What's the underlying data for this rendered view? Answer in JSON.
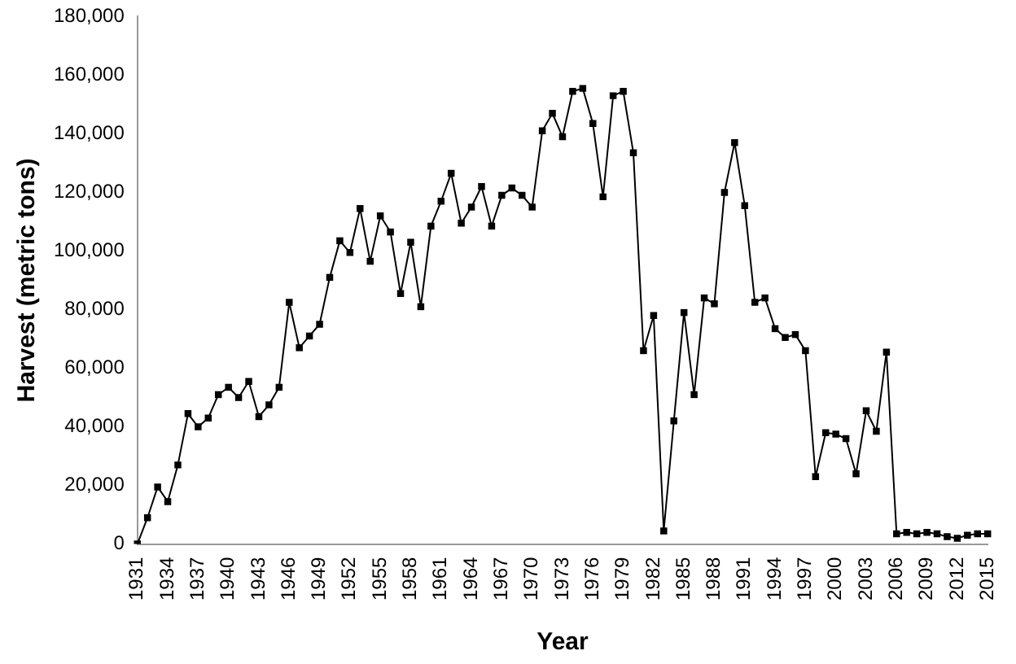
{
  "chart_data": {
    "type": "line",
    "xlabel": "Year",
    "ylabel": "Harvest (metric tons)",
    "categories": [
      "1931",
      null,
      null,
      "1934",
      null,
      null,
      "1937",
      null,
      null,
      "1940",
      null,
      null,
      "1943",
      null,
      null,
      "1946",
      null,
      null,
      "1949",
      null,
      null,
      "1952",
      null,
      null,
      "1955",
      null,
      null,
      "1958",
      null,
      null,
      "1961",
      null,
      null,
      "1964",
      null,
      null,
      "1967",
      null,
      null,
      "1970",
      null,
      null,
      "1973",
      null,
      null,
      "1976",
      null,
      null,
      "1979",
      null,
      null,
      "1982",
      null,
      null,
      "1985",
      null,
      null,
      "1988",
      null,
      null,
      "1991",
      null,
      null,
      "1994",
      null,
      null,
      "1997",
      null,
      null,
      "2000",
      null,
      null,
      "2003",
      null,
      null,
      "2006",
      null,
      null,
      "2009",
      null,
      null,
      "2012",
      null,
      null,
      "2015"
    ],
    "series": [
      {
        "color": "#000000",
        "values": [
          0,
          9000,
          19500,
          14500,
          27000,
          44500,
          40000,
          43000,
          51000,
          53500,
          50000,
          55500,
          43500,
          47500,
          53500,
          82500,
          67000,
          71000,
          75000,
          91000,
          103500,
          99500,
          114500,
          96500,
          112000,
          106500,
          85500,
          103000,
          81000,
          108500,
          117000,
          126500,
          109500,
          115000,
          122000,
          108500,
          119000,
          121500,
          119000,
          115000,
          141000,
          147000,
          139000,
          154500,
          155500,
          143500,
          118500,
          153000,
          154500,
          133500,
          66000,
          78000,
          4500,
          42000,
          79000,
          51000,
          84000,
          82000,
          120000,
          137000,
          115500,
          82500,
          84000,
          73500,
          70500,
          71500,
          66000,
          23000,
          38000,
          37500,
          36000,
          24000,
          45500,
          38500,
          65500,
          3500,
          4000,
          3500,
          4000,
          3500,
          2500,
          2000,
          3000,
          3500,
          3500
        ]
      }
    ],
    "ylim": [
      0,
      180000
    ],
    "yticks": [
      0,
      {
        "value": 20000,
        "label": "20,000"
      },
      {
        "value": 40000,
        "label": "40,000"
      },
      {
        "value": 60000,
        "label": "60,000"
      },
      {
        "value": 80000,
        "label": "80,000"
      },
      {
        "value": 100000,
        "label": "100,000"
      },
      {
        "value": 120000,
        "label": "120,000"
      },
      {
        "value": 140000,
        "label": "140,000"
      },
      {
        "value": 160000,
        "label": "160,000"
      },
      {
        "value": 180000,
        "label": "180,000"
      }
    ],
    "grid": false,
    "legend": false,
    "marker": "square",
    "line_style": "solid"
  }
}
